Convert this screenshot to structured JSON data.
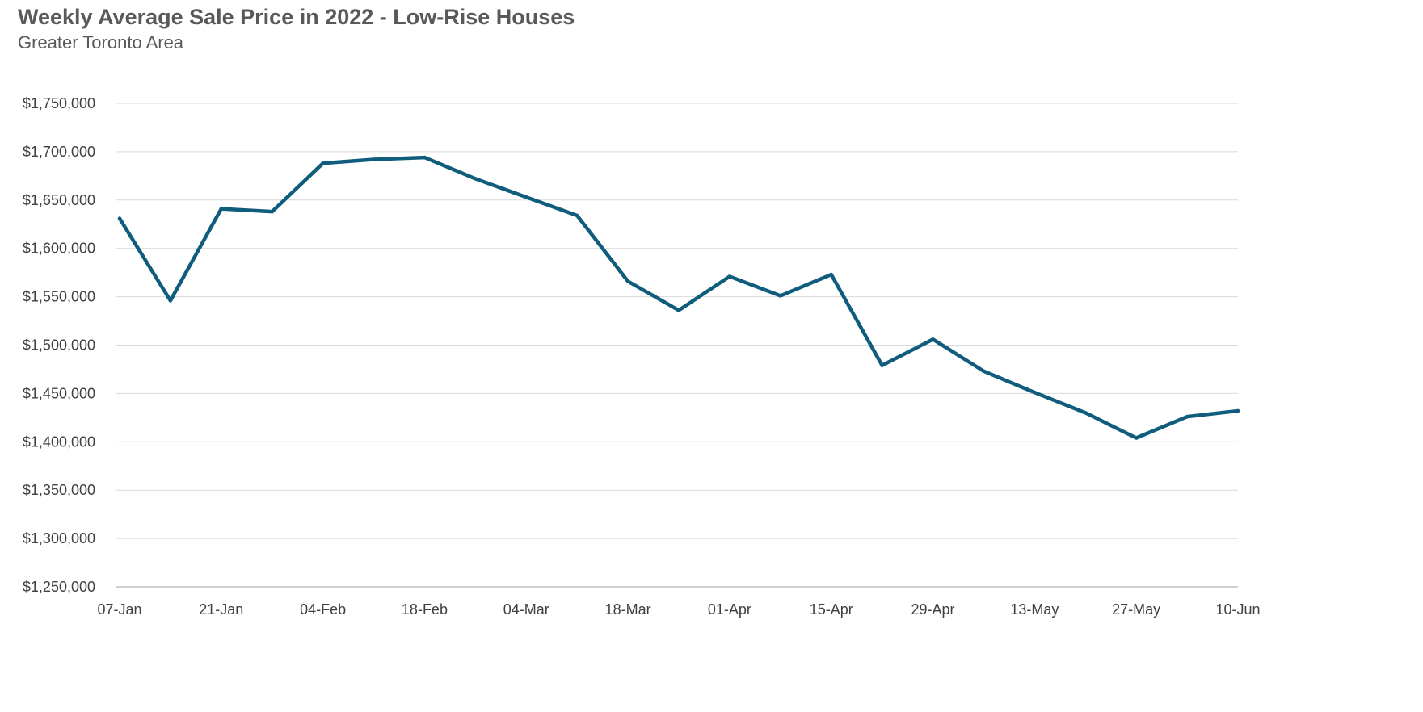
{
  "chart_data": {
    "type": "line",
    "title": "Weekly Average Sale Price in 2022 - Low-Rise Houses",
    "subtitle": "Greater Toronto Area",
    "x": [
      "07-Jan",
      "14-Jan",
      "21-Jan",
      "28-Jan",
      "04-Feb",
      "11-Feb",
      "18-Feb",
      "25-Feb",
      "04-Mar",
      "11-Mar",
      "18-Mar",
      "25-Mar",
      "01-Apr",
      "08-Apr",
      "15-Apr",
      "22-Apr",
      "29-Apr",
      "06-May",
      "13-May",
      "20-May",
      "27-May",
      "03-Jun",
      "10-Jun"
    ],
    "x_tick_labels": [
      "07-Jan",
      "21-Jan",
      "04-Feb",
      "18-Feb",
      "04-Mar",
      "18-Mar",
      "01-Apr",
      "15-Apr",
      "29-Apr",
      "13-May",
      "27-May",
      "10-Jun"
    ],
    "series": [
      {
        "values": [
          1631000,
          1546000,
          1641000,
          1638000,
          1688000,
          1692000,
          1694000,
          1672000,
          1653000,
          1634000,
          1566000,
          1536000,
          1571000,
          1551000,
          1573000,
          1479000,
          1506000,
          1473000,
          1451000,
          1430000,
          1404000,
          1426000,
          1432000
        ]
      }
    ],
    "ylim": [
      1250000,
      1750000
    ],
    "y_ticks": [
      1250000,
      1300000,
      1350000,
      1400000,
      1450000,
      1500000,
      1550000,
      1600000,
      1650000,
      1700000,
      1750000
    ],
    "y_tick_labels": [
      "$1,250,000",
      "$1,300,000",
      "$1,350,000",
      "$1,400,000",
      "$1,450,000",
      "$1,500,000",
      "$1,550,000",
      "$1,600,000",
      "$1,650,000",
      "$1,700,000",
      "$1,750,000"
    ],
    "xlabel": "",
    "ylabel": "",
    "grid": true,
    "legend": "none",
    "colors": {
      "line": "#0f5c7d",
      "grid": "#d9d9d9",
      "axis": "#bfbfbf",
      "text": "#595959"
    }
  }
}
